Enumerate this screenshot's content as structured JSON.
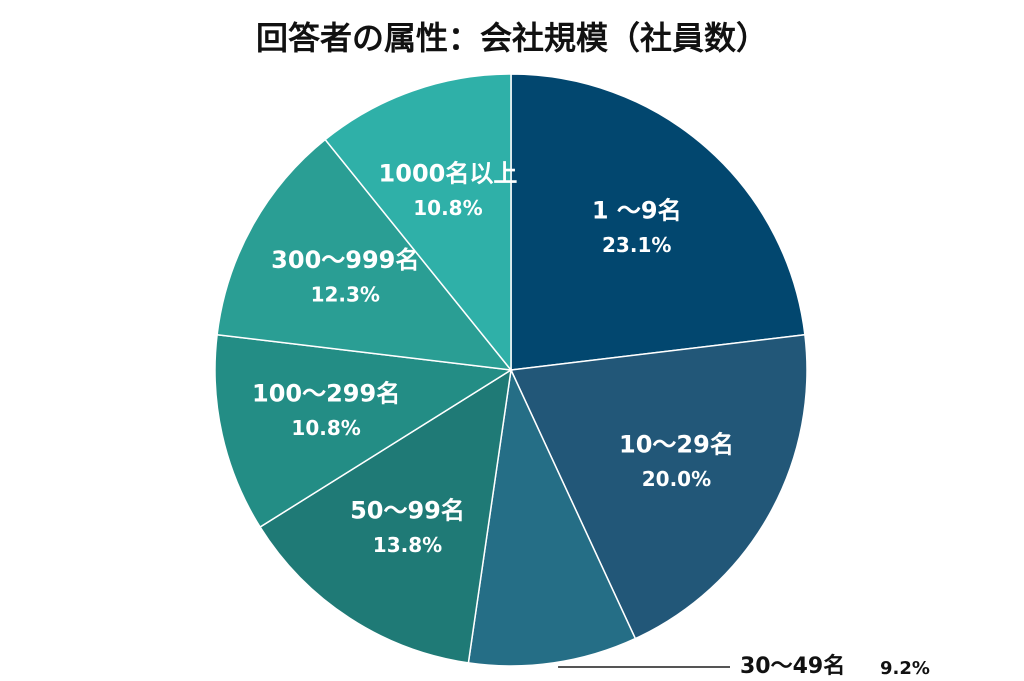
{
  "chart_data": {
    "type": "pie",
    "title": "回答者の属性：会社規模（社員数）",
    "categories": [
      "1 ～9名",
      "10～29名",
      "30～49名",
      "50～99名",
      "100～299名",
      "300～999名",
      "1000名以上"
    ],
    "values": [
      23.1,
      20.0,
      9.2,
      13.8,
      10.8,
      12.3,
      10.8
    ],
    "value_labels": [
      "23.1%",
      "20.0%",
      "9.2%",
      "13.8%",
      "10.8%",
      "12.3%",
      "10.8%"
    ],
    "colors": [
      "#02476f",
      "#225778",
      "#256e86",
      "#1f7a76",
      "#238d85",
      "#2a9e94",
      "#2fb0a8"
    ]
  }
}
